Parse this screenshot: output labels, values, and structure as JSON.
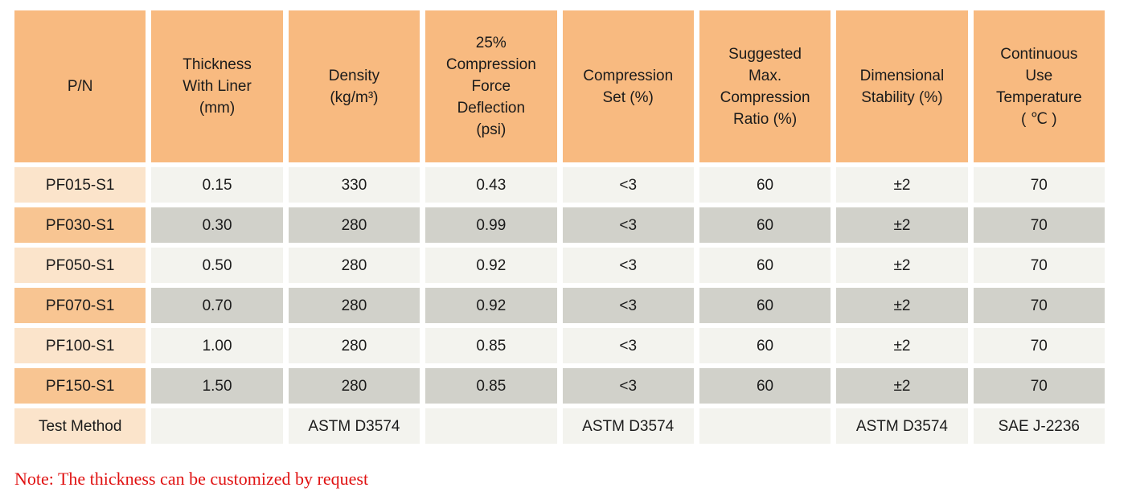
{
  "colors": {
    "header_bg": "#F8BA80",
    "pn_light": "#FBE4CB",
    "pn_dark": "#F8C592",
    "row_light": "#F3F3EE",
    "row_dark": "#D1D1CA",
    "note_red": "#E01212"
  },
  "table": {
    "headers": [
      [
        "P/N"
      ],
      [
        "Thickness",
        "With Liner",
        "(mm)"
      ],
      [
        "Density",
        "(kg/m³)"
      ],
      [
        "25%",
        "Compression",
        "Force",
        "Deflection",
        "(psi)"
      ],
      [
        "Compression",
        "Set (%)"
      ],
      [
        "Suggested",
        "Max.",
        "Compression",
        "Ratio (%)"
      ],
      [
        "Dimensional",
        "Stability (%)"
      ],
      [
        "Continuous",
        "Use",
        "Temperature",
        "( ℃ )"
      ]
    ],
    "rows": [
      {
        "cells": [
          "PF015-S1",
          "0.15",
          "330",
          "0.43",
          "<3",
          "60",
          "±2",
          "70"
        ]
      },
      {
        "cells": [
          "PF030-S1",
          "0.30",
          "280",
          "0.99",
          "<3",
          "60",
          "±2",
          "70"
        ]
      },
      {
        "cells": [
          "PF050-S1",
          "0.50",
          "280",
          "0.92",
          "<3",
          "60",
          "±2",
          "70"
        ]
      },
      {
        "cells": [
          "PF070-S1",
          "0.70",
          "280",
          "0.92",
          "<3",
          "60",
          "±2",
          "70"
        ]
      },
      {
        "cells": [
          "PF100-S1",
          "1.00",
          "280",
          "0.85",
          "<3",
          "60",
          "±2",
          "70"
        ]
      },
      {
        "cells": [
          "PF150-S1",
          "1.50",
          "280",
          "0.85",
          "<3",
          "60",
          "±2",
          "70"
        ]
      },
      {
        "cells": [
          "Test Method",
          "",
          "ASTM D3574",
          "",
          "ASTM D3574",
          "",
          "ASTM D3574",
          "SAE J-2236"
        ]
      }
    ]
  },
  "note": {
    "text": "Note: The thickness can be customized by request"
  }
}
